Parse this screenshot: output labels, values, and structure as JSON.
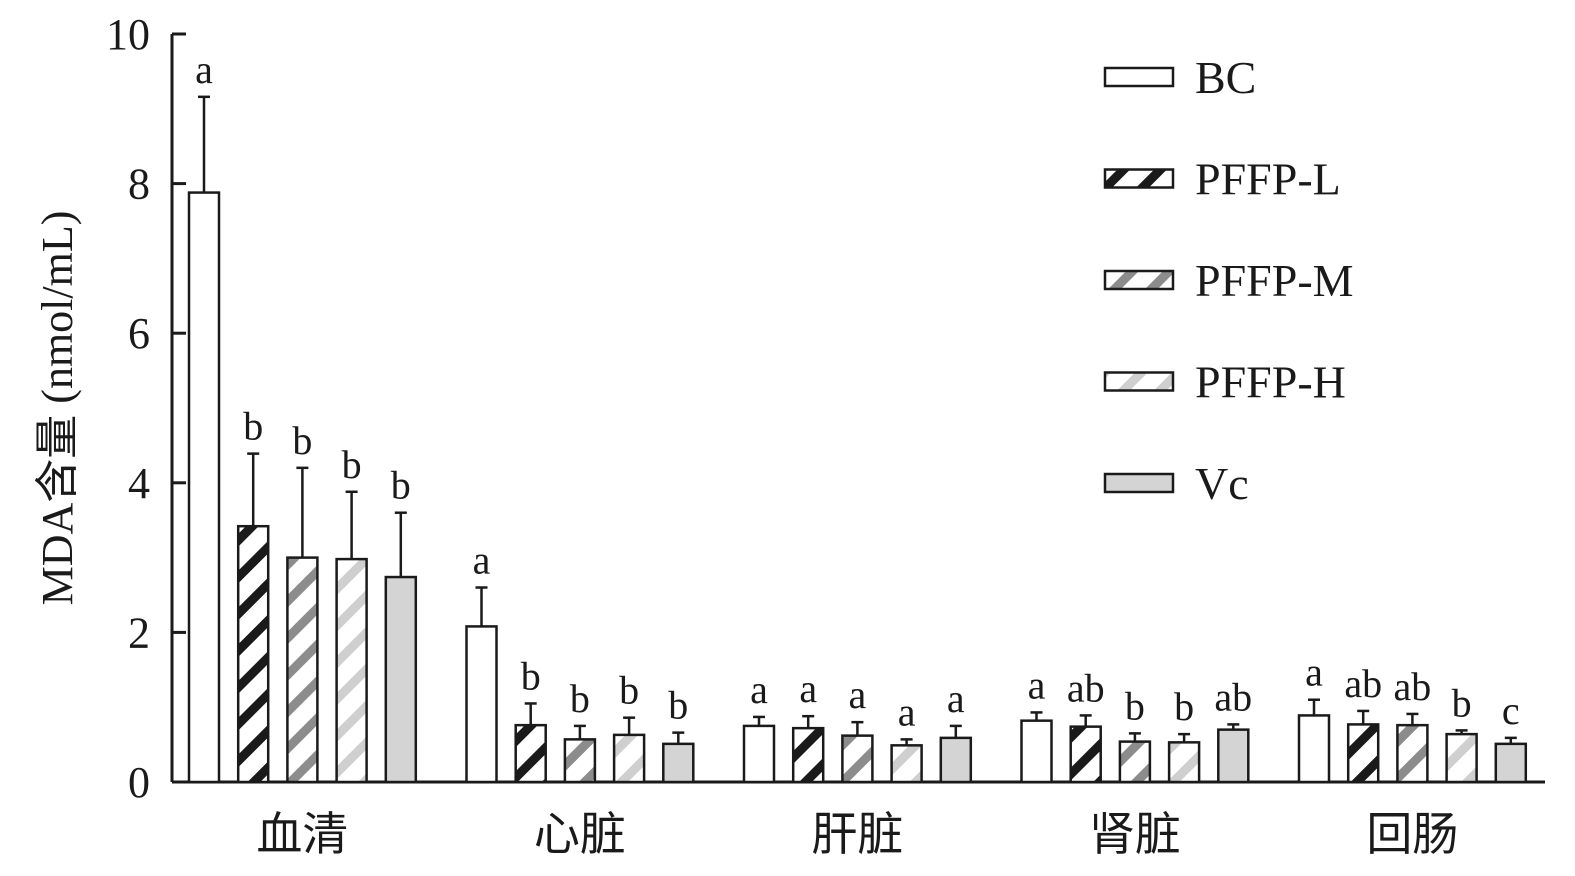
{
  "chart_data": {
    "type": "bar",
    "ylabel": "MDA含量 (nmol/mL)",
    "ylim": [
      0,
      10
    ],
    "yticks": [
      0,
      2,
      4,
      6,
      8,
      10
    ],
    "categories": [
      "血清",
      "心脏",
      "肝脏",
      "肾脏",
      "回肠"
    ],
    "series": [
      {
        "name": "BC",
        "pattern": "open",
        "values": [
          7.88,
          2.08,
          0.75,
          0.82,
          0.89
        ],
        "errors": [
          1.28,
          0.52,
          0.12,
          0.11,
          0.21
        ],
        "labels": [
          "a",
          "a",
          "a",
          "a",
          "a"
        ]
      },
      {
        "name": "PFFP-L",
        "pattern": "hatch-dark",
        "values": [
          3.42,
          0.76,
          0.72,
          0.74,
          0.77
        ],
        "errors": [
          0.97,
          0.29,
          0.16,
          0.15,
          0.18
        ],
        "labels": [
          "b",
          "b",
          "a",
          "ab",
          "ab"
        ]
      },
      {
        "name": "PFFP-M",
        "pattern": "hatch-mid",
        "values": [
          3.0,
          0.57,
          0.62,
          0.54,
          0.76
        ],
        "errors": [
          1.2,
          0.18,
          0.18,
          0.11,
          0.15
        ],
        "labels": [
          "b",
          "b",
          "a",
          "b",
          "ab"
        ]
      },
      {
        "name": "PFFP-H",
        "pattern": "hatch-light",
        "values": [
          2.98,
          0.63,
          0.49,
          0.53,
          0.64
        ],
        "errors": [
          0.9,
          0.23,
          0.08,
          0.11,
          0.05
        ],
        "labels": [
          "b",
          "b",
          "a",
          "b",
          "b"
        ]
      },
      {
        "name": "Vc",
        "pattern": "gray",
        "values": [
          2.74,
          0.51,
          0.59,
          0.7,
          0.51
        ],
        "errors": [
          0.86,
          0.15,
          0.16,
          0.07,
          0.08
        ],
        "labels": [
          "b",
          "b",
          "a",
          "ab",
          "c"
        ]
      }
    ],
    "legend_position": "top-right",
    "grid": false,
    "colors": {
      "outline": "#1a1a1a",
      "hatch_dark": "#1a1a1a",
      "hatch_mid": "#8c8c8c",
      "hatch_light": "#cfcfcf",
      "gray_fill": "#d4d4d4"
    }
  }
}
